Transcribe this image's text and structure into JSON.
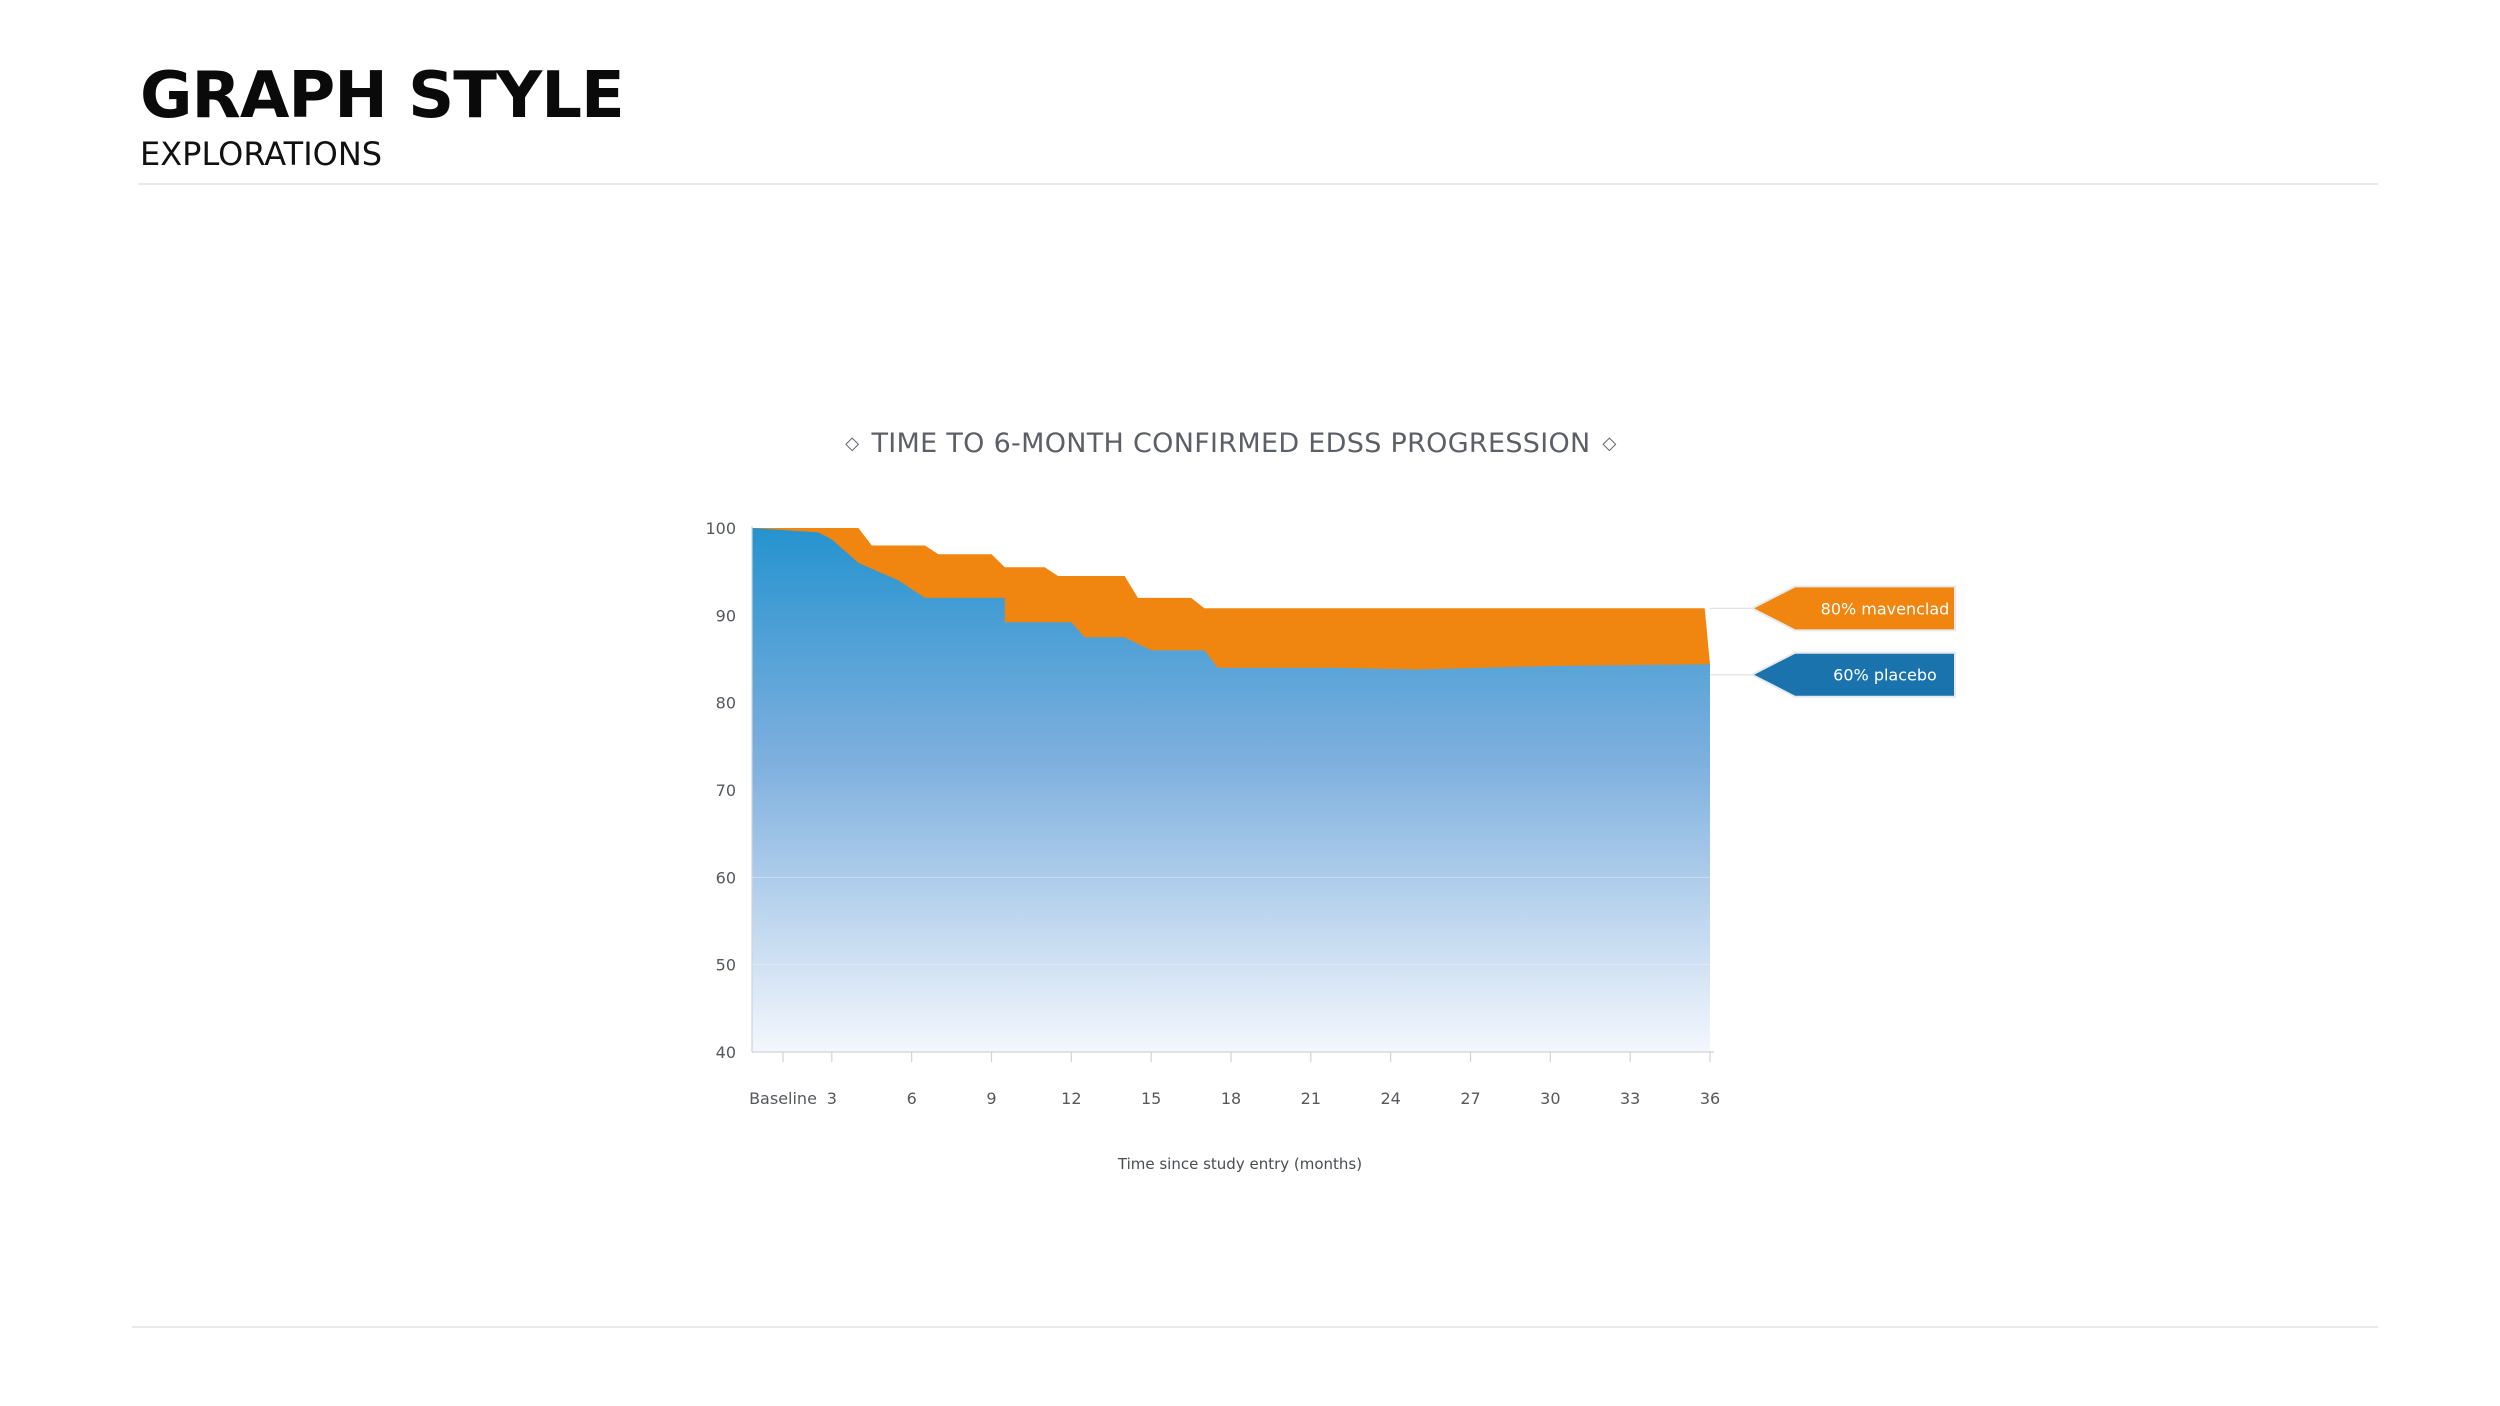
{
  "header": {
    "title": "GRAPH STYLE",
    "subtitle": "EXPLORATIONS"
  },
  "chart_data": {
    "type": "area",
    "title": "TIME TO 6-MONTH CONFIRMED EDSS PROGRESSION",
    "xlabel": "Time since study entry (months)",
    "ylabel": "",
    "x_tick_labels": [
      "Baseline",
      "3",
      "6",
      "9",
      "12",
      "15",
      "18",
      "21",
      "24",
      "27",
      "30",
      "33",
      "36"
    ],
    "y_ticks": [
      100,
      90,
      80,
      70,
      60,
      50,
      40
    ],
    "ylim": [
      40,
      100
    ],
    "xlim": [
      0,
      36
    ],
    "grid": "horizontal lines at 50 and 60",
    "legend": "right of plot, arrow-shaped tags pointing at the series end values",
    "series": [
      {
        "name": "80% mavenclad",
        "label": "80% mavenclad",
        "color": "#f0860f",
        "points": [
          [
            0,
            100
          ],
          [
            4,
            100
          ],
          [
            4.5,
            98
          ],
          [
            6.5,
            98
          ],
          [
            7,
            97
          ],
          [
            9,
            97
          ],
          [
            9.5,
            95.5
          ],
          [
            11,
            95.5
          ],
          [
            11.5,
            94.5
          ],
          [
            14,
            94.5
          ],
          [
            14.5,
            92
          ],
          [
            16.5,
            92
          ],
          [
            17,
            90.8
          ],
          [
            25,
            90.8
          ],
          [
            30,
            90.8
          ],
          [
            35.8,
            90.8
          ]
        ],
        "end_value": 90.8
      },
      {
        "name": "60% placebo",
        "label": "60% placebo",
        "color": "#1f7fc0",
        "points": [
          [
            0,
            100
          ],
          [
            2.5,
            99.5
          ],
          [
            3,
            98.7
          ],
          [
            4,
            96
          ],
          [
            5.5,
            94
          ],
          [
            6.5,
            92
          ],
          [
            8,
            92
          ],
          [
            9.5,
            92
          ],
          [
            9.5,
            89.2
          ],
          [
            12,
            89.2
          ],
          [
            12.5,
            87.5
          ],
          [
            14,
            87.5
          ],
          [
            15,
            86
          ],
          [
            17,
            86
          ],
          [
            17.5,
            84
          ],
          [
            22,
            84
          ],
          [
            25,
            83.8
          ],
          [
            30,
            84.2
          ],
          [
            36,
            84.4
          ]
        ],
        "end_value": 84.4
      }
    ]
  }
}
